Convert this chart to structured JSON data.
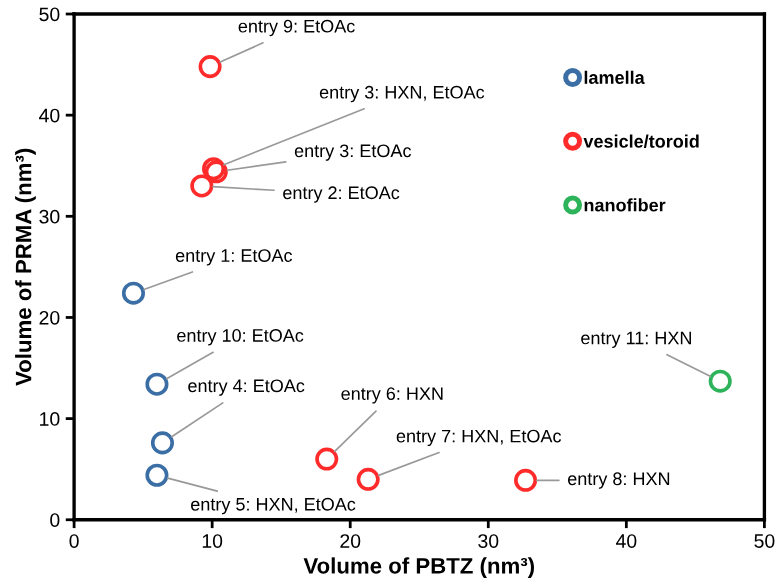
{
  "chart_data": {
    "type": "scatter",
    "xlabel": "Volume of PBTZ (nm³)",
    "ylabel": "Volume of PRMA (nm³)",
    "xlim": [
      0,
      50
    ],
    "xticks": [
      0,
      10,
      20,
      30,
      40,
      50
    ],
    "ylim": [
      0,
      50
    ],
    "yticks": [
      0,
      10,
      20,
      30,
      40,
      50
    ],
    "marker": "circle",
    "legend": "top right",
    "grid": false,
    "series": [
      {
        "name": "lamella",
        "color": "#3a6ea5",
        "x": [
          4.3,
          6.0,
          6.4,
          6.0
        ],
        "values": [
          22.4,
          13.4,
          7.6,
          4.4
        ]
      },
      {
        "name": "vesicle/toroid",
        "color": "#ff2a2a",
        "x": [
          9.85,
          10.1,
          10.3,
          9.25,
          18.3,
          21.3,
          32.7
        ],
        "values": [
          44.8,
          34.7,
          34.4,
          33.0,
          6.0,
          4.0,
          3.9
        ]
      },
      {
        "name": "nanofiber",
        "color": "#2db35a",
        "x": [
          46.8
        ],
        "values": [
          13.7
        ]
      }
    ],
    "annotations": [
      {
        "text": "entry 9: EtOAc",
        "x": 9.85,
        "y": 44.8
      },
      {
        "text": "entry 3: HXN, EtOAc",
        "x": 10.1,
        "y": 34.7
      },
      {
        "text": "entry 3: EtOAc",
        "x": 10.3,
        "y": 34.4
      },
      {
        "text": "entry 2: EtOAc",
        "x": 9.25,
        "y": 33.0
      },
      {
        "text": "entry 1: EtOAc",
        "x": 4.3,
        "y": 22.4
      },
      {
        "text": "entry 10: EtOAc",
        "x": 6.0,
        "y": 13.4
      },
      {
        "text": "entry 4: EtOAc",
        "x": 6.4,
        "y": 7.6
      },
      {
        "text": "entry 5: HXN, EtOAc",
        "x": 6.0,
        "y": 4.4
      },
      {
        "text": "entry 6: HXN",
        "x": 18.3,
        "y": 6.0
      },
      {
        "text": "entry 7: HXN, EtOAc",
        "x": 21.3,
        "y": 4.0
      },
      {
        "text": "entry 8: HXN",
        "x": 32.7,
        "y": 3.9
      },
      {
        "text": "entry 11: HXN",
        "x": 46.8,
        "y": 13.7
      }
    ]
  }
}
